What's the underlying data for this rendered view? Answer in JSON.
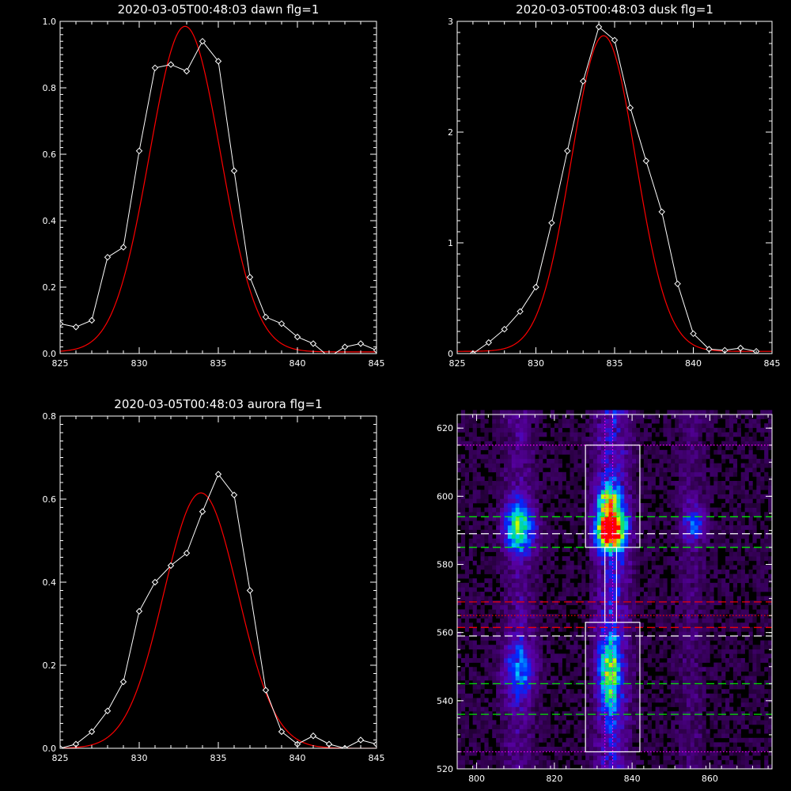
{
  "chart_data": [
    {
      "id": "dawn",
      "type": "line",
      "title": "2020-03-05T00:48:03 dawn flg=1",
      "xlim": [
        825,
        845
      ],
      "ylim": [
        0,
        1.0
      ],
      "xticks": [
        825,
        830,
        835,
        840,
        845
      ],
      "yticks": [
        0.0,
        0.2,
        0.4,
        0.6,
        0.8,
        1.0
      ],
      "ytick_labels": [
        "0.0",
        "0.2",
        "0.4",
        "0.6",
        "0.8",
        "1.0"
      ],
      "series": [
        {
          "kind": "data",
          "color": "#ffffff",
          "marker": "diamond",
          "x": [
            825,
            826,
            827,
            828,
            829,
            830,
            831,
            832,
            833,
            834,
            835,
            836,
            837,
            838,
            839,
            840,
            841,
            842,
            843,
            844,
            845
          ],
          "y": [
            0.09,
            0.08,
            0.1,
            0.29,
            0.32,
            0.61,
            0.86,
            0.87,
            0.85,
            0.94,
            0.88,
            0.55,
            0.23,
            0.11,
            0.09,
            0.05,
            0.03,
            -0.01,
            0.02,
            0.03,
            0.01
          ]
        },
        {
          "kind": "gaussian",
          "color": "#ff0000",
          "amp": 0.98,
          "center": 832.9,
          "sigma": 2.25,
          "offset": 0.005
        }
      ]
    },
    {
      "id": "dusk",
      "type": "line",
      "title": "2020-03-05T00:48:03 dusk flg=1",
      "xlim": [
        825,
        845
      ],
      "ylim": [
        0,
        3
      ],
      "xticks": [
        825,
        830,
        835,
        840,
        845
      ],
      "yticks": [
        0,
        1,
        2,
        3
      ],
      "ytick_labels": [
        "0",
        "1",
        "2",
        "3"
      ],
      "series": [
        {
          "kind": "data",
          "color": "#ffffff",
          "marker": "diamond",
          "x": [
            826,
            827,
            828,
            829,
            830,
            831,
            832,
            833,
            834,
            835,
            836,
            837,
            838,
            839,
            840,
            841,
            842,
            843,
            844
          ],
          "y": [
            0.0,
            0.1,
            0.22,
            0.38,
            0.6,
            1.18,
            1.83,
            2.46,
            2.95,
            2.83,
            2.22,
            1.74,
            1.28,
            0.63,
            0.18,
            0.04,
            0.03,
            0.05,
            0.02
          ]
        },
        {
          "kind": "gaussian",
          "color": "#ff0000",
          "amp": 2.85,
          "center": 834.3,
          "sigma": 2.05,
          "offset": 0.02
        }
      ]
    },
    {
      "id": "aurora",
      "type": "line",
      "title": "2020-03-05T00:48:03 aurora flg=1",
      "xlim": [
        825,
        845
      ],
      "ylim": [
        0,
        0.8
      ],
      "xticks": [
        825,
        830,
        835,
        840,
        845
      ],
      "yticks": [
        0.0,
        0.2,
        0.4,
        0.6,
        0.8
      ],
      "ytick_labels": [
        "0.0",
        "0.2",
        "0.4",
        "0.6",
        "0.8"
      ],
      "series": [
        {
          "kind": "data",
          "color": "#ffffff",
          "marker": "diamond",
          "x": [
            825,
            826,
            827,
            828,
            829,
            830,
            831,
            832,
            833,
            834,
            835,
            836,
            837,
            838,
            839,
            840,
            841,
            842,
            843,
            844,
            845
          ],
          "y": [
            0.0,
            0.01,
            0.04,
            0.09,
            0.16,
            0.33,
            0.4,
            0.44,
            0.47,
            0.57,
            0.66,
            0.61,
            0.38,
            0.14,
            0.04,
            0.01,
            0.03,
            0.01,
            0.0,
            0.02,
            0.01
          ]
        },
        {
          "kind": "gaussian",
          "color": "#ff0000",
          "amp": 0.615,
          "center": 833.9,
          "sigma": 2.35,
          "offset": 0.0
        }
      ]
    },
    {
      "id": "image",
      "type": "heatmap",
      "title": "",
      "xlim": [
        795,
        876
      ],
      "ylim": [
        520,
        624
      ],
      "xticks": [
        800,
        820,
        840,
        860
      ],
      "yticks": [
        520,
        540,
        560,
        580,
        600,
        620
      ],
      "columns": [
        {
          "x0": 805,
          "x1": 817,
          "weight": 0.55
        },
        {
          "x0": 828,
          "x1": 842,
          "weight": 1.0
        },
        {
          "x0": 850,
          "x1": 860,
          "weight": 0.35
        }
      ],
      "hotspots": [
        {
          "x": 834.5,
          "y": 590,
          "amp": 1.0,
          "sx": 2.6,
          "sy": 4.0
        },
        {
          "x": 834.0,
          "y": 599,
          "amp": 0.55,
          "sx": 2.2,
          "sy": 3.0
        },
        {
          "x": 811.0,
          "y": 591,
          "amp": 0.55,
          "sx": 2.8,
          "sy": 5.0
        },
        {
          "x": 834.0,
          "y": 548,
          "amp": 0.5,
          "sx": 2.0,
          "sy": 7.0
        },
        {
          "x": 811.0,
          "y": 549,
          "amp": 0.3,
          "sx": 3.0,
          "sy": 6.0
        },
        {
          "x": 856.0,
          "y": 592,
          "amp": 0.3,
          "sx": 2.2,
          "sy": 4.0
        }
      ],
      "boxes": [
        {
          "x0": 828,
          "x1": 842,
          "y0": 585,
          "y1": 615,
          "color": "#ffffff"
        },
        {
          "x0": 828,
          "x1": 842,
          "y0": 525,
          "y1": 563,
          "color": "#ffffff"
        },
        {
          "x0": 833,
          "x1": 836,
          "y0": 563,
          "y1": 585,
          "color": "#ffffff"
        }
      ],
      "hlines": [
        {
          "y": 615,
          "color": "#ff00ff",
          "style": "dotted"
        },
        {
          "y": 594,
          "color": "#00ff00",
          "style": "dashed"
        },
        {
          "y": 589,
          "color": "#ffffff",
          "style": "dashed"
        },
        {
          "y": 585,
          "color": "#00ff00",
          "style": "dashed"
        },
        {
          "y": 569,
          "color": "#ff0000",
          "style": "dashed"
        },
        {
          "y": 565,
          "color": "#ff0000",
          "style": "dotted"
        },
        {
          "y": 561.5,
          "color": "#ff0000",
          "style": "dashed"
        },
        {
          "y": 559,
          "color": "#ffffff",
          "style": "dashed"
        },
        {
          "y": 545,
          "color": "#00ff00",
          "style": "dashed"
        },
        {
          "y": 536,
          "color": "#00ff00",
          "style": "dashed"
        },
        {
          "y": 525,
          "color": "#ff00ff",
          "style": "dotted"
        }
      ],
      "vlines": [
        {
          "x": 833.0,
          "color": "#ff00ff",
          "style": "dotted"
        },
        {
          "x": 835.0,
          "color": "#ff00ff",
          "style": "dotted"
        }
      ]
    }
  ]
}
